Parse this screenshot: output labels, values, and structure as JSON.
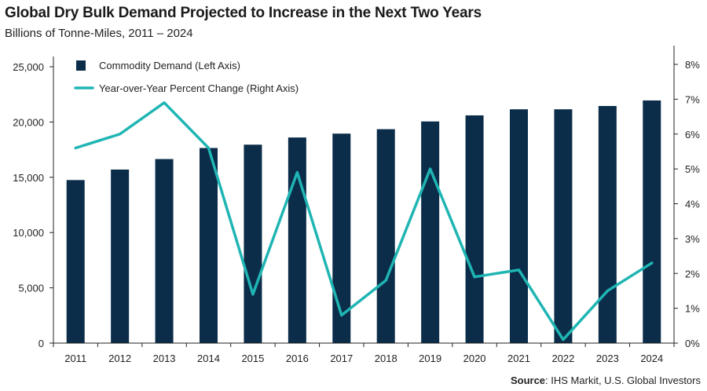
{
  "header": {
    "title": "Global Dry Bulk Demand Projected to Increase in the Next Two Years",
    "subtitle": "Billions of Tonne-Miles, 2011 – 2024"
  },
  "footer": {
    "source_label": "Source",
    "source_text": ": IHS Markit, U.S. Global Investors"
  },
  "chart_data": {
    "type": "bar",
    "categories": [
      "2011",
      "2012",
      "2013",
      "2014",
      "2015",
      "2016",
      "2017",
      "2018",
      "2019",
      "2020",
      "2021",
      "2022",
      "2023",
      "2024"
    ],
    "series": [
      {
        "name": "Commodity Demand (Left Axis)",
        "type": "bar",
        "axis": "left",
        "color": "#0b2d4a",
        "values": [
          14750,
          15700,
          16650,
          17650,
          17950,
          18600,
          18950,
          19350,
          20050,
          20600,
          21150,
          21150,
          21450,
          21950
        ]
      },
      {
        "name": "Year-over-Year Percent Change (Right Axis)",
        "type": "line",
        "axis": "right",
        "color": "#1fb5b3",
        "values": [
          5.6,
          6.0,
          6.9,
          5.6,
          1.4,
          4.9,
          0.8,
          1.8,
          5.0,
          1.9,
          2.1,
          0.1,
          1.5,
          2.3
        ]
      }
    ],
    "left_axis": {
      "min": 0,
      "max": 25000,
      "ticks": [
        "0",
        "5,000",
        "10,000",
        "15,000",
        "20,000",
        "25,000"
      ]
    },
    "right_axis": {
      "min": 0,
      "max": 8,
      "ticks": [
        "0%",
        "1%",
        "2%",
        "3%",
        "4%",
        "5%",
        "6%",
        "7%",
        "8%"
      ]
    },
    "legend": "top-left",
    "grid": false
  }
}
